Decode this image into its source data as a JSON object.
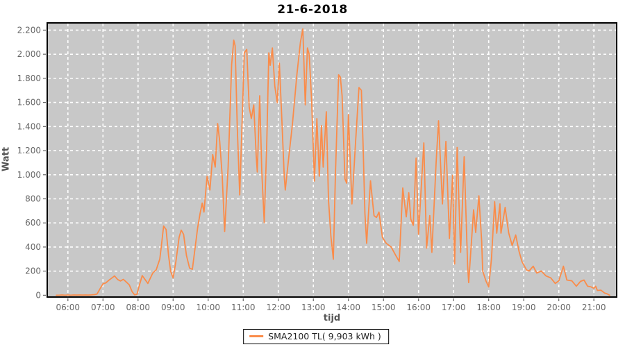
{
  "chart_data": {
    "type": "line",
    "title": "21-6-2018",
    "xlabel": "tijd",
    "ylabel": "Watt",
    "grid": true,
    "legend": {
      "label": "SMA2100 TL( 9,903 kWh )",
      "position": "bottom-center"
    },
    "x_tick_labels": [
      "06:00",
      "07:00",
      "08:00",
      "09:00",
      "10:00",
      "11:00",
      "12:00",
      "13:00",
      "14:00",
      "15:00",
      "16:00",
      "17:00",
      "18:00",
      "19:00",
      "20:00",
      "21:00"
    ],
    "x_tick_hours": [
      6,
      7,
      8,
      9,
      10,
      11,
      12,
      13,
      14,
      15,
      16,
      17,
      18,
      19,
      20,
      21
    ],
    "y_tick_labels": [
      "0",
      "200",
      "400",
      "600",
      "800",
      "1.000",
      "1.200",
      "1.400",
      "1.600",
      "1.800",
      "2.000",
      "2.200"
    ],
    "y_tick_values": [
      0,
      200,
      400,
      600,
      800,
      1000,
      1200,
      1400,
      1600,
      1800,
      2000,
      2200
    ],
    "x_axis_range_hours": [
      5.41,
      21.65
    ],
    "y_axis_range": [
      -15,
      2260
    ],
    "colors": {
      "line": "#fa8c4a",
      "plot_bg": "#c8c8c8",
      "grid": "#ffffff",
      "plot_border": "#000000",
      "tick_label": "#666666",
      "axis_label": "#555555",
      "title": "#000000"
    },
    "series": [
      {
        "name": "SMA2100 TL",
        "x_hours": [
          5.67,
          5.75,
          5.83,
          5.92,
          6.0,
          6.08,
          6.17,
          6.25,
          6.33,
          6.42,
          6.5,
          6.58,
          6.67,
          6.75,
          6.83,
          6.92,
          7.0,
          7.08,
          7.17,
          7.25,
          7.33,
          7.42,
          7.5,
          7.58,
          7.67,
          7.75,
          7.83,
          7.9,
          7.97,
          8.03,
          8.12,
          8.2,
          8.28,
          8.42,
          8.52,
          8.62,
          8.67,
          8.73,
          8.8,
          8.87,
          8.93,
          9.0,
          9.08,
          9.17,
          9.23,
          9.3,
          9.38,
          9.47,
          9.55,
          9.63,
          9.7,
          9.77,
          9.83,
          9.88,
          9.97,
          10.05,
          10.13,
          10.2,
          10.27,
          10.33,
          10.4,
          10.47,
          10.57,
          10.67,
          10.73,
          10.77,
          10.83,
          10.9,
          10.97,
          11.03,
          11.1,
          11.17,
          11.23,
          11.3,
          11.37,
          11.4,
          11.47,
          11.53,
          11.6,
          11.67,
          11.73,
          11.77,
          11.83,
          11.9,
          11.97,
          12.03,
          12.1,
          12.17,
          12.2,
          12.3,
          12.4,
          12.53,
          12.63,
          12.7,
          12.77,
          12.83,
          12.88,
          12.95,
          13.03,
          13.1,
          13.17,
          13.23,
          13.28,
          13.37,
          13.43,
          13.5,
          13.57,
          13.63,
          13.72,
          13.77,
          13.82,
          13.9,
          13.95,
          14.0,
          14.1,
          14.2,
          14.3,
          14.37,
          14.42,
          14.47,
          14.52,
          14.63,
          14.73,
          14.8,
          14.87,
          14.97,
          15.08,
          15.22,
          15.35,
          15.45,
          15.55,
          15.65,
          15.72,
          15.78,
          15.85,
          15.93,
          16.0,
          16.15,
          16.23,
          16.32,
          16.38,
          16.5,
          16.57,
          16.68,
          16.78,
          16.88,
          16.97,
          17.03,
          17.1,
          17.2,
          17.3,
          17.4,
          17.43,
          17.57,
          17.63,
          17.72,
          17.8,
          17.83,
          17.92,
          18.0,
          18.08,
          18.17,
          18.23,
          18.32,
          18.35,
          18.47,
          18.57,
          18.67,
          18.77,
          18.87,
          18.95,
          19.08,
          19.15,
          19.27,
          19.37,
          19.5,
          19.63,
          19.77,
          19.9,
          20.0,
          20.13,
          20.23,
          20.37,
          20.5,
          20.62,
          20.72,
          20.82,
          20.92,
          21.0,
          21.05,
          21.1,
          21.2,
          21.3,
          21.38,
          21.45
        ],
        "watts": [
          0,
          0,
          2,
          0,
          2,
          0,
          2,
          1,
          2,
          1,
          2,
          1,
          3,
          5,
          10,
          55,
          95,
          102,
          125,
          142,
          160,
          130,
          118,
          132,
          108,
          86,
          30,
          4,
          8,
          76,
          163,
          130,
          98,
          184,
          212,
          300,
          420,
          575,
          545,
          330,
          200,
          144,
          280,
          480,
          540,
          505,
          330,
          225,
          215,
          400,
          560,
          678,
          765,
          690,
          988,
          873,
          1167,
          1063,
          1425,
          1276,
          988,
          529,
          1063,
          1916,
          2117,
          2070,
          1390,
          833,
          1448,
          2011,
          2040,
          1563,
          1466,
          1580,
          1161,
          1023,
          1655,
          1023,
          603,
          1253,
          2011,
          1908,
          2052,
          1736,
          1598,
          1925,
          1466,
          988,
          873,
          1150,
          1408,
          1830,
          2100,
          2210,
          1580,
          2052,
          2000,
          1620,
          948,
          1466,
          988,
          1408,
          1063,
          1523,
          795,
          489,
          299,
          1000,
          1829,
          1810,
          1657,
          965,
          930,
          1500,
          758,
          1250,
          1724,
          1700,
          1235,
          678,
          431,
          950,
          660,
          645,
          690,
          480,
          430,
          400,
          330,
          280,
          890,
          650,
          850,
          630,
          580,
          1138,
          505,
          1264,
          391,
          661,
          356,
          1100,
          1448,
          758,
          1276,
          471,
          996,
          259,
          1226,
          356,
          1149,
          241,
          105,
          709,
          520,
          825,
          448,
          201,
          120,
          69,
          300,
          776,
          515,
          758,
          515,
          729,
          518,
          413,
          500,
          360,
          278,
          210,
          201,
          241,
          184,
          201,
          161,
          144,
          98,
          120,
          241,
          126,
          120,
          75,
          115,
          126,
          75,
          69,
          57,
          75,
          40,
          42,
          19,
          11,
          0
        ]
      }
    ]
  }
}
